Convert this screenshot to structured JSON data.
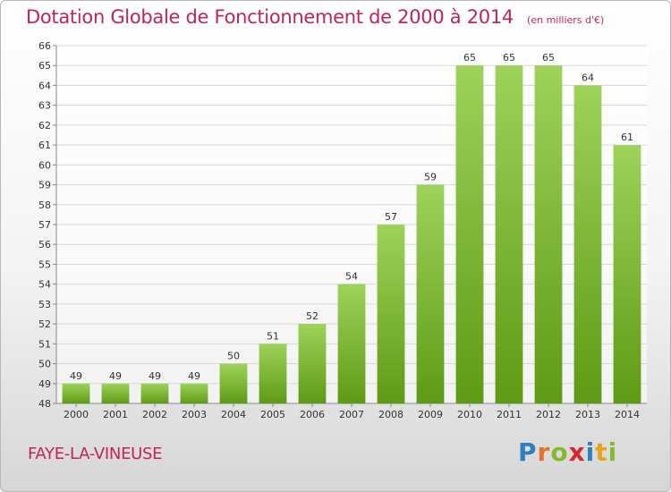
{
  "title": "Dotation Globale de Fonctionnement de 2000 à 2014",
  "subtitle": "(en milliers d'€)",
  "commune": "FAYE-LA-VINEUSE",
  "brand": {
    "letters": [
      {
        "ch": "P",
        "color": "#2e7fc0"
      },
      {
        "ch": "r",
        "color": "#e8702a"
      },
      {
        "ch": "o",
        "color": "#86b82c"
      },
      {
        "ch": "x",
        "color": "#d6262e"
      },
      {
        "ch": "i",
        "color": "#2e7fc0"
      },
      {
        "ch": "t",
        "color": "#e8a21c"
      },
      {
        "ch": "i",
        "color": "#86b82c"
      }
    ]
  },
  "colors": {
    "accent": "#c0245a",
    "bar_top": "#9ed25a",
    "bar_bottom": "#5f9a14",
    "grid": "#d8d8d8"
  },
  "chart_data": {
    "type": "bar",
    "title": "Dotation Globale de Fonctionnement de 2000 à 2014",
    "subtitle": "(en milliers d'€)",
    "categories": [
      "2000",
      "2001",
      "2002",
      "2003",
      "2004",
      "2005",
      "2006",
      "2007",
      "2008",
      "2009",
      "2010",
      "2011",
      "2012",
      "2013",
      "2014"
    ],
    "values": [
      49,
      49,
      49,
      49,
      50,
      51,
      52,
      54,
      57,
      59,
      65,
      65,
      65,
      64,
      61
    ],
    "ylim": [
      48,
      66
    ],
    "yticks": [
      48,
      49,
      50,
      51,
      52,
      53,
      54,
      55,
      56,
      57,
      58,
      59,
      60,
      61,
      62,
      63,
      64,
      65,
      66
    ],
    "grid": true,
    "data_labels": true
  }
}
